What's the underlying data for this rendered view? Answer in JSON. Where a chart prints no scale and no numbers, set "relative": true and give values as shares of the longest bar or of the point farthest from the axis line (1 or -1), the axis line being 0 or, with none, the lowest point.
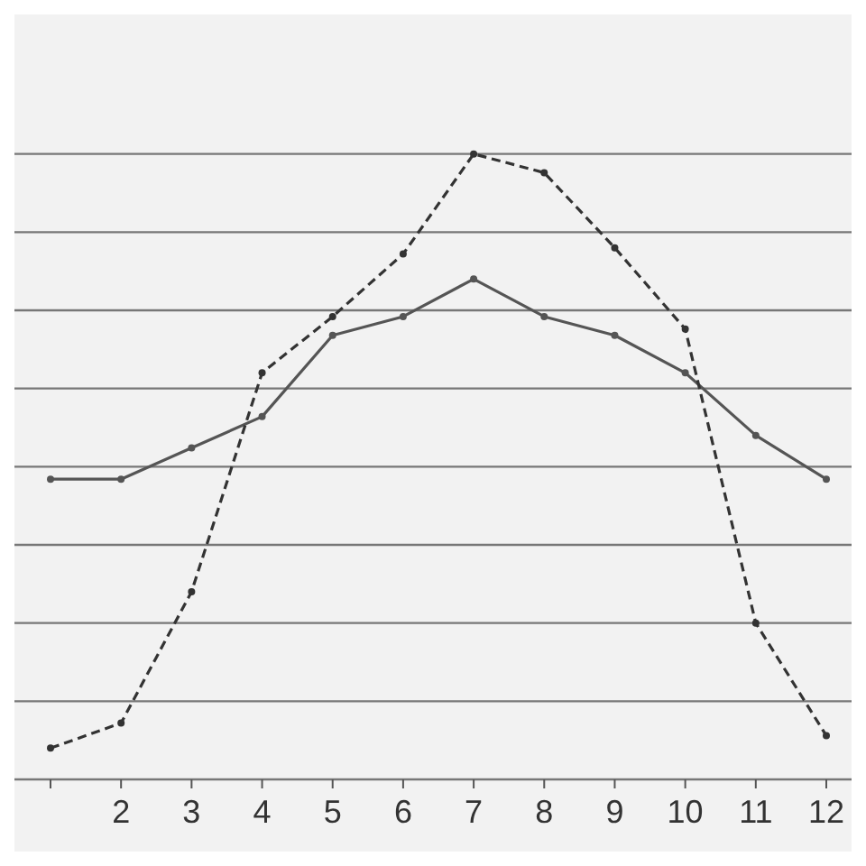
{
  "chart_data": {
    "type": "line",
    "relative": true,
    "categories": [
      null,
      "2",
      "3",
      "4",
      "5",
      "6",
      "7",
      "8",
      "9",
      "10",
      "11",
      "12"
    ],
    "grid": "y",
    "marker": "circle",
    "series": [
      {
        "color": "#555555",
        "line_style": "solid",
        "values": [
          0.48,
          0.48,
          0.53,
          0.58,
          0.71,
          0.74,
          0.8,
          0.74,
          0.71,
          0.65,
          0.55,
          0.48
        ]
      },
      {
        "color": "#333333",
        "line_style": "dashed",
        "values": [
          0.05,
          0.09,
          0.3,
          0.65,
          0.74,
          0.84,
          1,
          0.97,
          0.85,
          0.72,
          0.25,
          0.07
        ]
      }
    ]
  }
}
